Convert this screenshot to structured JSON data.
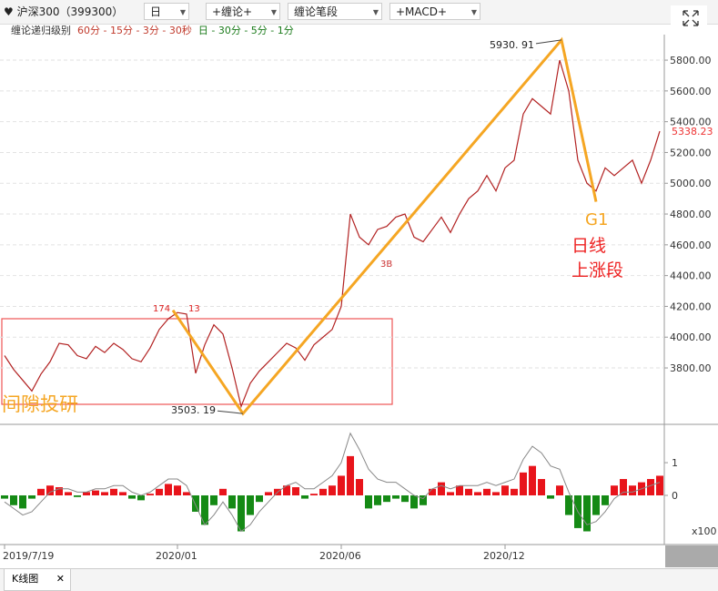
{
  "toolbar": {
    "symbol": "沪深300（399300）",
    "period": "日",
    "indicator1": "+缠论+",
    "indicator2": "缠论笔段",
    "indicator3": "+MACD+"
  },
  "legend": {
    "label": "缠论递归级别",
    "red": "60分 - 15分 - 3分 - 30秒",
    "green": "日 - 30分 - 5分 - 1分"
  },
  "annotations": {
    "high": "5930. 91",
    "low": "3503. 19",
    "a": "174",
    "b": "13",
    "c": "3B",
    "g1": "G1",
    "line1": "日线",
    "line2": "上涨段",
    "watermark": "间隙投研"
  },
  "chart_data": [
    {
      "type": "line",
      "color": "#b22222",
      "categories": [
        "2019/7/19",
        null,
        null,
        null,
        null,
        null,
        null,
        null,
        null,
        null,
        null,
        null,
        null,
        null,
        null,
        null,
        null,
        null,
        null,
        "2020/01",
        null,
        null,
        null,
        null,
        null,
        null,
        null,
        null,
        null,
        null,
        null,
        null,
        null,
        null,
        null,
        null,
        null,
        "2020/06",
        null,
        null,
        null,
        null,
        null,
        null,
        null,
        null,
        null,
        null,
        null,
        null,
        null,
        null,
        null,
        null,
        null,
        "2020/12",
        null,
        null,
        null,
        null,
        null,
        null,
        null,
        null,
        null,
        null,
        null,
        null,
        null,
        null,
        null,
        null,
        null
      ],
      "values": [
        3880,
        3790,
        3720,
        3650,
        3760,
        3840,
        3960,
        3950,
        3880,
        3860,
        3940,
        3900,
        3960,
        3920,
        3860,
        3840,
        3930,
        4050,
        4120,
        4160,
        4150,
        3765,
        3950,
        4080,
        4020,
        3800,
        3550,
        3700,
        3780,
        3840,
        3900,
        3960,
        3930,
        3850,
        3950,
        4000,
        4050,
        4200,
        4800,
        4650,
        4600,
        4700,
        4720,
        4780,
        4800,
        4650,
        4620,
        4700,
        4780,
        4680,
        4800,
        4900,
        4950,
        5050,
        4950,
        5100,
        5150,
        5450,
        5550,
        5500,
        5450,
        5800,
        5600,
        5150,
        5000,
        4950,
        5100,
        5050,
        5100,
        5150,
        5000,
        5150,
        5338.23
      ],
      "ylim": [
        3457,
        5966
      ],
      "yticks": [
        {
          "value": 3800,
          "label": "3800.00"
        },
        {
          "value": 4000,
          "label": "4000.00"
        },
        {
          "value": 4200,
          "label": "4200.00"
        },
        {
          "value": 4400,
          "label": "4400.00"
        },
        {
          "value": 4600,
          "label": "4600.00"
        },
        {
          "value": 4800,
          "label": "4800.00"
        },
        {
          "value": 5000,
          "label": "5000.00"
        },
        {
          "value": 5200,
          "label": "5200.00"
        },
        {
          "value": 5400,
          "label": "5400.00"
        },
        {
          "value": 5600,
          "label": "5600.00"
        },
        {
          "value": 5800,
          "label": "5800.00"
        }
      ],
      "grid": true,
      "zigzag": {
        "color": "#f5a623",
        "x": [
          18.5,
          26.2,
          61.2,
          65
        ],
        "values": [
          4175,
          3503.19,
          5930.91,
          4880
        ],
        "value_labels": [
          null,
          "3503. 19",
          "5930. 91",
          null
        ]
      }
    },
    {
      "type": "bar",
      "unit": "x100",
      "up_color": "#e8141b",
      "down_color": "#158a15",
      "values": [
        -0.1,
        -0.3,
        -0.4,
        -0.1,
        0.2,
        0.3,
        0.25,
        0.1,
        -0.05,
        0.1,
        0.15,
        0.1,
        0.2,
        0.1,
        -0.1,
        -0.15,
        0.05,
        0.2,
        0.35,
        0.3,
        0.1,
        -0.5,
        -0.9,
        -0.3,
        0.2,
        -0.4,
        -1.1,
        -0.6,
        -0.2,
        0.1,
        0.2,
        0.3,
        0.25,
        -0.1,
        0.05,
        0.2,
        0.3,
        0.6,
        1.2,
        0.5,
        -0.4,
        -0.3,
        -0.2,
        -0.1,
        -0.2,
        -0.4,
        -0.3,
        0.2,
        0.4,
        0.1,
        0.3,
        0.2,
        0.1,
        0.2,
        0.1,
        0.3,
        0.2,
        0.7,
        0.9,
        0.5,
        -0.1,
        0.3,
        -0.6,
        -1.0,
        -1.1,
        -0.6,
        -0.3,
        0.3,
        0.5,
        0.3,
        0.4,
        0.5,
        0.6
      ],
      "dif": {
        "color": "#888888",
        "values": [
          -0.2,
          -0.4,
          -0.6,
          -0.5,
          -0.2,
          0.1,
          0.2,
          0.2,
          0.1,
          0.1,
          0.2,
          0.2,
          0.3,
          0.3,
          0.1,
          0,
          0.1,
          0.3,
          0.5,
          0.5,
          0.3,
          -0.3,
          -0.9,
          -0.6,
          -0.2,
          -0.6,
          -1.1,
          -0.9,
          -0.5,
          -0.2,
          0.1,
          0.3,
          0.4,
          0.2,
          0.2,
          0.4,
          0.6,
          1.0,
          1.9,
          1.4,
          0.8,
          0.5,
          0.4,
          0.4,
          0.2,
          0,
          -0.1,
          0.2,
          0.3,
          0.2,
          0.3,
          0.3,
          0.3,
          0.4,
          0.3,
          0.4,
          0.5,
          1.1,
          1.5,
          1.3,
          0.9,
          0.8,
          0.1,
          -0.5,
          -0.9,
          -0.8,
          -0.5,
          -0.1,
          0.1,
          0.1,
          0.2,
          0.3,
          0.4
        ]
      },
      "ylim": [
        -1.42,
        2.06
      ],
      "yticks": [
        0,
        1
      ]
    }
  ],
  "footer": {
    "tab": "K线图"
  }
}
